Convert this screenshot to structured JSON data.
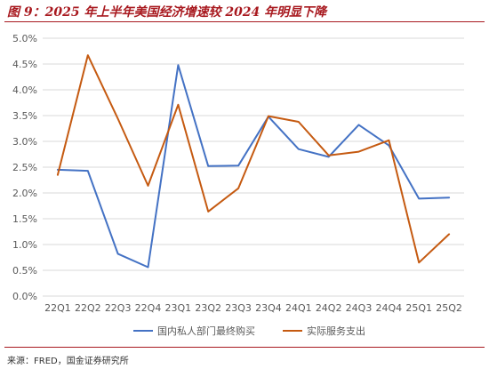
{
  "figure": {
    "title": "图 9：2025 年上半年美国经济增速较 2024 年明显下降",
    "source": "来源：FRED，国金证券研究所"
  },
  "colors": {
    "title": "#A8191F",
    "series_1": "#4472C4",
    "series_2": "#C55A11",
    "grid": "#D9D9D9",
    "axis_text": "#595959"
  },
  "chart_data": {
    "type": "line",
    "title": "",
    "xlabel": "",
    "ylabel": "",
    "categories": [
      "22Q1",
      "22Q2",
      "22Q3",
      "22Q4",
      "23Q1",
      "23Q2",
      "23Q3",
      "23Q4",
      "24Q1",
      "24Q2",
      "24Q3",
      "24Q4",
      "25Q1",
      "25Q2"
    ],
    "ylim": [
      0,
      5
    ],
    "y_ticks": [
      0,
      0.5,
      1,
      1.5,
      2,
      2.5,
      3,
      3.5,
      4,
      4.5,
      5
    ],
    "y_tick_labels": [
      "0.0%",
      "0.5%",
      "1.0%",
      "1.5%",
      "2.0%",
      "2.5%",
      "3.0%",
      "3.5%",
      "4.0%",
      "4.5%",
      "5.0%"
    ],
    "grid": true,
    "legend_position": "bottom",
    "series": [
      {
        "name": "国内私人部门最终购买",
        "color": "#4472C4",
        "values": [
          2.45,
          2.43,
          0.82,
          0.56,
          4.48,
          2.52,
          2.53,
          3.48,
          2.85,
          2.7,
          3.32,
          2.92,
          1.89,
          1.91
        ]
      },
      {
        "name": "实际服务支出",
        "color": "#C55A11",
        "values": [
          2.35,
          4.67,
          3.44,
          2.14,
          3.71,
          1.64,
          2.09,
          3.49,
          3.38,
          2.73,
          2.8,
          3.02,
          0.65,
          1.2
        ]
      }
    ]
  }
}
